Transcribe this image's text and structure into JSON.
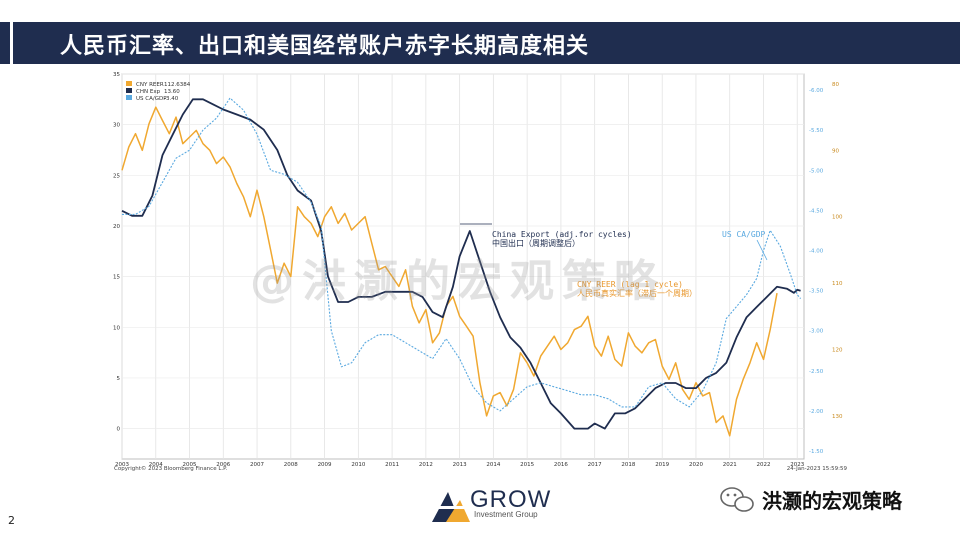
{
  "slide": {
    "title": "人民币汇率、出口和美国经常账户赤字长期高度相关",
    "number": "2",
    "watermark": "@洪灏的宏观策略",
    "logo_main": "GROW",
    "logo_sub": "Investment Group",
    "wechat_label": "洪灏的宏观策略"
  },
  "colors": {
    "header": "#1f2d4f",
    "reer": "#f0a830",
    "exp": "#1f2d4f",
    "ca": "#5aa9e0"
  },
  "chart_data": {
    "type": "line",
    "legend": [
      {
        "name": "CNY REER",
        "value": "112.6384"
      },
      {
        "name": "CHN Exp",
        "value": "13.60"
      },
      {
        "name": "US CA/GDP",
        "value": "-3.40"
      }
    ],
    "copyright": "Copyright© 2023 Bloomberg Finance L.P.",
    "timestamp": "24-Jan-2023 15:59:59",
    "annotations": {
      "exp_en": "China Export (adj.for cycles)",
      "exp_cn": "中国出口（周期调整后）",
      "ca_en": "US CA/GDP",
      "reer_en": "CNY REER (lag 1 cycle)",
      "reer_cn": "人民币真实汇率（滞后一个周期）"
    },
    "x_range": [
      2003,
      2023.2
    ],
    "x_ticks": [
      "2003",
      "2004",
      "2005",
      "2006",
      "2007",
      "2008",
      "2009",
      "2010",
      "2011",
      "2012",
      "2013",
      "2014",
      "2015",
      "2016",
      "2017",
      "2018",
      "2019",
      "2020",
      "2021",
      "2022",
      "2023"
    ],
    "left_axis": {
      "range": [
        -3,
        35
      ],
      "ticks": [
        "0",
        "5",
        "10",
        "15",
        "20",
        "25",
        "30",
        "35"
      ]
    },
    "right_axis1": {
      "range": [
        -1.4,
        -6.2
      ],
      "ticks": [
        "-1.50",
        "-2.00",
        "-2.50",
        "-3.00",
        "-3.50",
        "-4.00",
        "-4.50",
        "-5.00",
        "-5.50",
        "-6.00"
      ]
    },
    "right_axis2": {
      "range": [
        136.5,
        78.5
      ],
      "ticks": [
        "80",
        "90",
        "100",
        "110",
        "120",
        "130"
      ]
    },
    "series": [
      {
        "name": "CNY REER",
        "axis": "right2",
        "x": [
          2003.0,
          2003.2,
          2003.4,
          2003.6,
          2003.8,
          2004.0,
          2004.2,
          2004.4,
          2004.6,
          2004.8,
          2005.0,
          2005.2,
          2005.4,
          2005.6,
          2005.8,
          2006.0,
          2006.2,
          2006.4,
          2006.6,
          2006.8,
          2007.0,
          2007.2,
          2007.4,
          2007.6,
          2007.8,
          2008.0,
          2008.2,
          2008.4,
          2008.6,
          2008.8,
          2009.0,
          2009.2,
          2009.4,
          2009.6,
          2009.8,
          2010.0,
          2010.2,
          2010.4,
          2010.6,
          2010.8,
          2011.0,
          2011.2,
          2011.4,
          2011.6,
          2011.8,
          2012.0,
          2012.2,
          2012.4,
          2012.6,
          2012.8,
          2013.0,
          2013.2,
          2013.4,
          2013.6,
          2013.8,
          2014.0,
          2014.2,
          2014.4,
          2014.6,
          2014.8,
          2015.0,
          2015.2,
          2015.4,
          2015.6,
          2015.8,
          2016.0,
          2016.2,
          2016.4,
          2016.6,
          2016.8,
          2017.0,
          2017.2,
          2017.4,
          2017.6,
          2017.8,
          2018.0,
          2018.2,
          2018.4,
          2018.6,
          2018.8,
          2019.0,
          2019.2,
          2019.4,
          2019.6,
          2019.8,
          2020.0,
          2020.2,
          2020.4,
          2020.6,
          2020.8,
          2021.0,
          2021.2,
          2021.4,
          2021.6,
          2021.8,
          2022.0,
          2022.2,
          2022.4
        ],
        "values": [
          93.0,
          89.5,
          87.5,
          90.0,
          86.0,
          83.5,
          85.5,
          87.5,
          85.0,
          89.0,
          88.0,
          87.0,
          89.0,
          90.0,
          92.0,
          91.0,
          92.5,
          95.0,
          97.0,
          100.0,
          96.0,
          100.0,
          105.0,
          110.0,
          107.0,
          109.0,
          98.5,
          100.0,
          101.0,
          103.0,
          100.0,
          98.5,
          101.0,
          99.5,
          102.0,
          101.0,
          100.0,
          104.0,
          108.0,
          107.5,
          109.0,
          110.5,
          108.0,
          113.5,
          116.0,
          114.0,
          119.0,
          117.5,
          113.5,
          112.0,
          115.0,
          116.5,
          118.0,
          125.0,
          130.0,
          127.0,
          126.5,
          128.5,
          126.0,
          120.5,
          122.0,
          124.0,
          121.0,
          119.5,
          118.0,
          120.0,
          119.0,
          117.0,
          116.5,
          115.0,
          119.5,
          121.0,
          118.0,
          121.5,
          122.5,
          117.5,
          119.5,
          120.5,
          119.0,
          118.5,
          122.5,
          124.5,
          122.0,
          126.0,
          127.5,
          125.0,
          127.0,
          126.5,
          131.0,
          130.0,
          133.0,
          127.5,
          124.5,
          122.0,
          119.0,
          121.5,
          117.0,
          111.5
        ]
      },
      {
        "name": "CHN Exp",
        "axis": "left",
        "x": [
          2003.0,
          2003.3,
          2003.6,
          2003.9,
          2004.2,
          2004.5,
          2004.8,
          2005.1,
          2005.4,
          2005.7,
          2006.0,
          2006.4,
          2006.8,
          2007.2,
          2007.6,
          2007.9,
          2008.2,
          2008.6,
          2008.9,
          2009.1,
          2009.4,
          2009.7,
          2010.0,
          2010.4,
          2010.8,
          2011.2,
          2011.6,
          2011.9,
          2012.2,
          2012.5,
          2012.8,
          2013.0,
          2013.3,
          2013.6,
          2013.9,
          2014.2,
          2014.5,
          2014.8,
          2015.1,
          2015.4,
          2015.7,
          2016.0,
          2016.4,
          2016.8,
          2017.0,
          2017.3,
          2017.6,
          2017.9,
          2018.2,
          2018.5,
          2018.8,
          2019.1,
          2019.4,
          2019.7,
          2020.0,
          2020.3,
          2020.6,
          2020.9,
          2021.2,
          2021.5,
          2021.8,
          2022.1,
          2022.4,
          2022.7,
          2022.9,
          2023.0,
          2023.1
        ],
        "values": [
          21.5,
          21.0,
          21.0,
          23.0,
          27.0,
          29.0,
          31.0,
          32.5,
          32.5,
          32.0,
          31.5,
          31.0,
          30.5,
          29.5,
          27.5,
          25.0,
          23.5,
          22.5,
          19.5,
          15.0,
          12.5,
          12.5,
          13.0,
          13.0,
          13.5,
          13.5,
          13.5,
          13.0,
          11.5,
          11.0,
          14.0,
          17.0,
          19.5,
          16.5,
          13.5,
          11.0,
          9.0,
          8.0,
          6.5,
          4.5,
          2.5,
          1.5,
          0.0,
          0.0,
          0.5,
          0.0,
          1.5,
          1.5,
          2.0,
          3.0,
          4.0,
          4.5,
          4.5,
          4.0,
          4.0,
          5.0,
          5.5,
          6.5,
          9.0,
          11.0,
          12.0,
          13.0,
          14.0,
          13.8,
          13.4,
          13.7,
          13.6
        ]
      },
      {
        "name": "US CA/GDP",
        "axis": "right1",
        "x": [
          2003.0,
          2003.4,
          2003.8,
          2004.2,
          2004.6,
          2005.0,
          2005.4,
          2005.8,
          2006.2,
          2006.6,
          2007.0,
          2007.4,
          2007.8,
          2008.2,
          2008.6,
          2008.9,
          2009.2,
          2009.5,
          2009.8,
          2010.2,
          2010.6,
          2011.0,
          2011.4,
          2011.8,
          2012.2,
          2012.6,
          2013.0,
          2013.4,
          2013.8,
          2014.2,
          2014.6,
          2015.0,
          2015.4,
          2015.8,
          2016.2,
          2016.6,
          2017.0,
          2017.4,
          2017.8,
          2018.2,
          2018.6,
          2019.0,
          2019.4,
          2019.8,
          2020.2,
          2020.6,
          2020.9,
          2021.2,
          2021.5,
          2021.8,
          2022.0,
          2022.2,
          2022.5,
          2022.8,
          2023.0,
          2023.1
        ],
        "values": [
          -4.45,
          -4.45,
          -4.55,
          -4.85,
          -5.15,
          -5.25,
          -5.5,
          -5.65,
          -5.9,
          -5.75,
          -5.45,
          -5.0,
          -4.95,
          -4.85,
          -4.6,
          -4.3,
          -3.0,
          -2.55,
          -2.6,
          -2.85,
          -2.95,
          -2.95,
          -2.85,
          -2.75,
          -2.65,
          -2.9,
          -2.65,
          -2.3,
          -2.1,
          -2.0,
          -2.15,
          -2.3,
          -2.35,
          -2.3,
          -2.25,
          -2.2,
          -2.2,
          -2.15,
          -2.05,
          -2.05,
          -2.3,
          -2.35,
          -2.15,
          -2.05,
          -2.25,
          -2.6,
          -3.15,
          -3.3,
          -3.45,
          -3.65,
          -4.0,
          -4.25,
          -4.05,
          -3.7,
          -3.45,
          -3.4
        ]
      }
    ]
  }
}
